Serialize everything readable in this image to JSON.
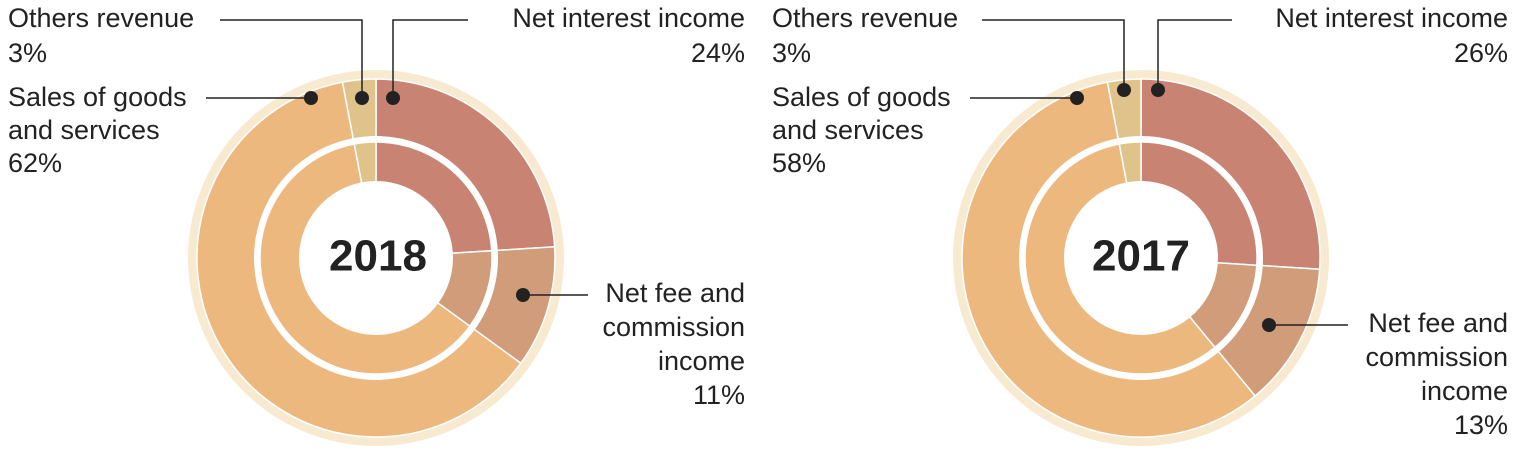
{
  "colors": {
    "net_interest": "#c98373",
    "net_fee": "#d09c7a",
    "sales": "#ecb87e",
    "others": "#dfc38a",
    "outer_ring": "#f8ead0",
    "callout": "#222222"
  },
  "chart_data": [
    {
      "type": "pie",
      "center_label": "2018",
      "slices": [
        {
          "label_lines": [
            "Net interest income"
          ],
          "value_text": "24%",
          "value": 24
        },
        {
          "label_lines": [
            "Net fee and",
            "commission",
            "income"
          ],
          "value_text": "11%",
          "value": 11
        },
        {
          "label_lines": [
            "Sales of goods",
            "and services"
          ],
          "value_text": "62%",
          "value": 62
        },
        {
          "label_lines": [
            "Others revenue"
          ],
          "value_text": "3%",
          "value": 3
        }
      ]
    },
    {
      "type": "pie",
      "center_label": "2017",
      "slices": [
        {
          "label_lines": [
            "Net interest income"
          ],
          "value_text": "26%",
          "value": 26
        },
        {
          "label_lines": [
            "Net fee and",
            "commission",
            "income"
          ],
          "value_text": "13%",
          "value": 13
        },
        {
          "label_lines": [
            "Sales of goods",
            "and services"
          ],
          "value_text": "58%",
          "value": 58
        },
        {
          "label_lines": [
            "Others revenue"
          ],
          "value_text": "3%",
          "value": 3
        }
      ]
    }
  ]
}
